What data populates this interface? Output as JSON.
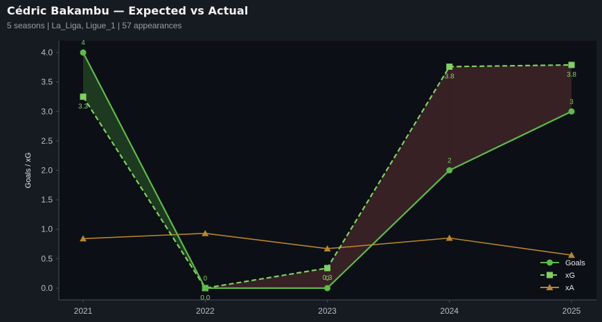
{
  "header": {
    "title": "Cédric Bakambu — Expected vs Actual",
    "subtitle": "5 seasons | La_Liga, Ligue_1 | 57 appearances"
  },
  "chart_data": {
    "type": "line",
    "title": "Cédric Bakambu — Expected vs Actual",
    "subtitle": "5 seasons | La_Liga, Ligue_1 | 57 appearances",
    "xlabel": "",
    "ylabel": "Goals / xG",
    "categories": [
      "2021",
      "2022",
      "2023",
      "2024",
      "2025"
    ],
    "ylim": [
      -0.2,
      4.2
    ],
    "yticks": [
      "0.0",
      "0.5",
      "1.0",
      "1.5",
      "2.0",
      "2.5",
      "3.0",
      "3.5",
      "4.0"
    ],
    "grid": false,
    "legend_position": "bottom-right",
    "series": [
      {
        "name": "Goals",
        "values": [
          4,
          0,
          0,
          2,
          3
        ],
        "labels": [
          "4",
          "0",
          "0",
          "2",
          "3"
        ],
        "color": "#5dbb4a",
        "style": "solid",
        "marker": "circle"
      },
      {
        "name": "xG",
        "values": [
          3.25,
          0.0,
          0.34,
          3.76,
          3.79
        ],
        "labels": [
          "3.3",
          "0.0",
          "0.3",
          "3.8",
          "3.8"
        ],
        "color": "#7fd163",
        "style": "dashed",
        "marker": "square"
      },
      {
        "name": "xA",
        "values": [
          0.84,
          0.93,
          0.67,
          0.85,
          0.56
        ],
        "color": "#b8862b",
        "style": "solid",
        "marker": "triangle"
      }
    ],
    "fill_colors": {
      "over": "#1f3d22",
      "under": "#3a2326"
    }
  }
}
